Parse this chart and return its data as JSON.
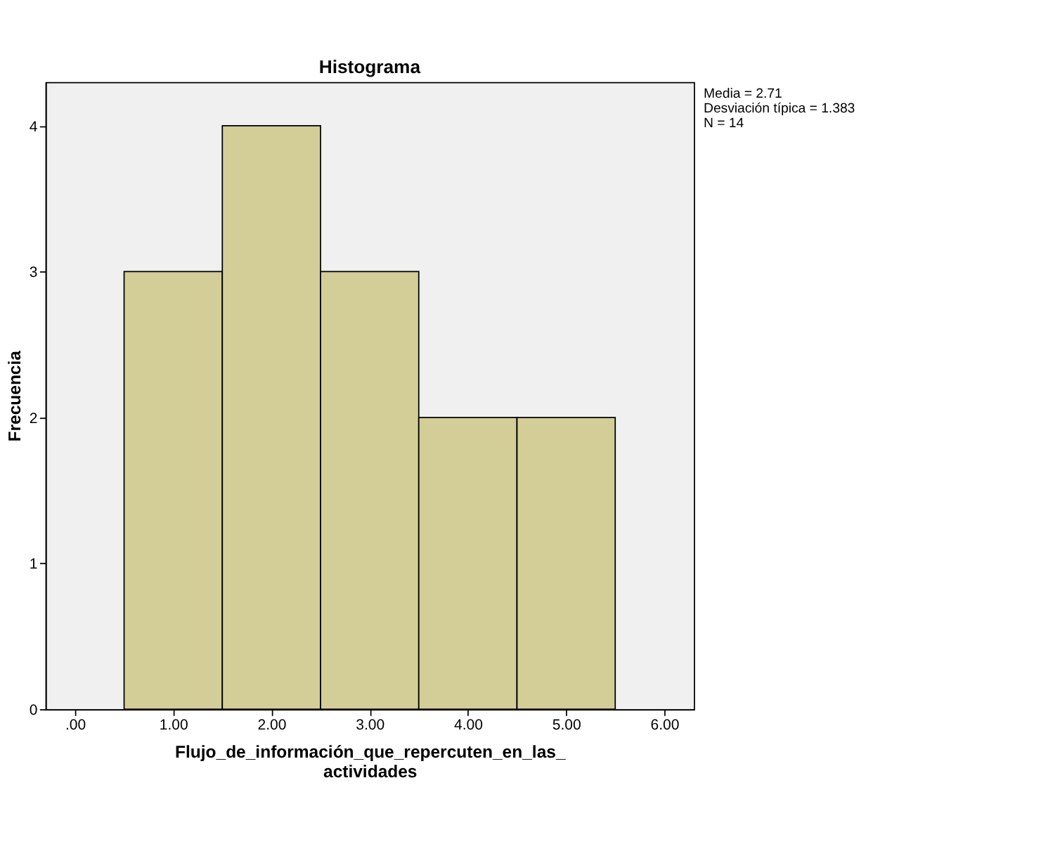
{
  "chart_data": {
    "type": "histogram",
    "title": "Histograma",
    "xlabel": "Flujo_de_información_que_repercuten_en_las_\nactividades",
    "ylabel": "Frecuencia",
    "bins": [
      0.5,
      1.5,
      2.5,
      3.5,
      4.5,
      5.5
    ],
    "values": [
      3,
      4,
      3,
      2,
      2
    ],
    "color": "#d3ce97",
    "xlim": [
      -0.3,
      6.3
    ],
    "ylim": [
      0,
      4.3
    ],
    "xticks": [
      {
        "value": 0,
        "label": ".00"
      },
      {
        "value": 1,
        "label": "1.00"
      },
      {
        "value": 2,
        "label": "2.00"
      },
      {
        "value": 3,
        "label": "3.00"
      },
      {
        "value": 4,
        "label": "4.00"
      },
      {
        "value": 5,
        "label": "5.00"
      },
      {
        "value": 6,
        "label": "6.00"
      }
    ],
    "yticks": [
      0,
      1,
      2,
      3,
      4
    ],
    "grid": false,
    "annotations": [
      "Media = 2.71\nDesviación típica = 1.383\nN = 14"
    ]
  }
}
